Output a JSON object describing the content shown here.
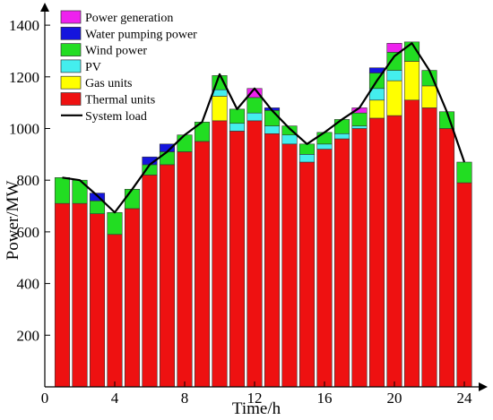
{
  "chart_data": {
    "type": "bar",
    "stacked": true,
    "xlabel": "Time/h",
    "ylabel": "Power/MW",
    "xlim": [
      0,
      25
    ],
    "ylim": [
      0,
      1450
    ],
    "x_ticks": [
      0,
      4,
      8,
      12,
      16,
      20,
      24
    ],
    "y_ticks": [
      0,
      200,
      400,
      600,
      800,
      1000,
      1200,
      1400
    ],
    "grid": false,
    "legend_position": "top-left",
    "categories": [
      1,
      2,
      3,
      4,
      5,
      6,
      7,
      8,
      9,
      10,
      11,
      12,
      13,
      14,
      15,
      16,
      17,
      18,
      19,
      20,
      21,
      22,
      23,
      24
    ],
    "series": [
      {
        "name": "Thermal units",
        "color": "#ee1111",
        "values": [
          710,
          710,
          670,
          590,
          690,
          820,
          860,
          910,
          950,
          1030,
          990,
          1030,
          980,
          940,
          870,
          920,
          960,
          1000,
          1040,
          1050,
          1110,
          1080,
          1000,
          790
        ]
      },
      {
        "name": "Gas units",
        "color": "#ffff00",
        "values": [
          0,
          0,
          0,
          0,
          0,
          0,
          0,
          0,
          0,
          95,
          0,
          0,
          0,
          0,
          0,
          0,
          0,
          0,
          70,
          135,
          150,
          85,
          0,
          0
        ]
      },
      {
        "name": "PV",
        "color": "#44eeee",
        "values": [
          0,
          0,
          0,
          0,
          0,
          0,
          0,
          0,
          0,
          25,
          30,
          30,
          30,
          35,
          30,
          20,
          20,
          10,
          45,
          40,
          0,
          0,
          0,
          0
        ]
      },
      {
        "name": "Wind power",
        "color": "#22dd22",
        "values": [
          100,
          90,
          50,
          85,
          75,
          40,
          50,
          65,
          75,
          55,
          55,
          60,
          60,
          35,
          40,
          45,
          55,
          50,
          60,
          70,
          75,
          60,
          65,
          80
        ]
      },
      {
        "name": "Water pumping power",
        "color": "#1515dd",
        "values": [
          0,
          0,
          30,
          0,
          0,
          30,
          30,
          0,
          0,
          0,
          0,
          0,
          10,
          0,
          0,
          0,
          0,
          0,
          20,
          0,
          0,
          0,
          0,
          0
        ]
      },
      {
        "name": "Power generation",
        "color": "#ee22ee",
        "values": [
          0,
          0,
          0,
          0,
          0,
          0,
          0,
          0,
          0,
          0,
          0,
          35,
          0,
          0,
          0,
          0,
          0,
          20,
          0,
          35,
          0,
          0,
          0,
          0
        ]
      }
    ],
    "line": {
      "name": "System load",
      "color": "#000000",
      "x": [
        1,
        2,
        3,
        4,
        5,
        6,
        7,
        8,
        9,
        10,
        11,
        12,
        13,
        14,
        15,
        16,
        17,
        18,
        19,
        20,
        21,
        22,
        23,
        24
      ],
      "values": [
        810,
        800,
        740,
        675,
        765,
        860,
        910,
        975,
        1025,
        1210,
        1075,
        1155,
        1070,
        1000,
        940,
        985,
        1035,
        1080,
        1185,
        1280,
        1330,
        1225,
        1065,
        870
      ]
    }
  }
}
